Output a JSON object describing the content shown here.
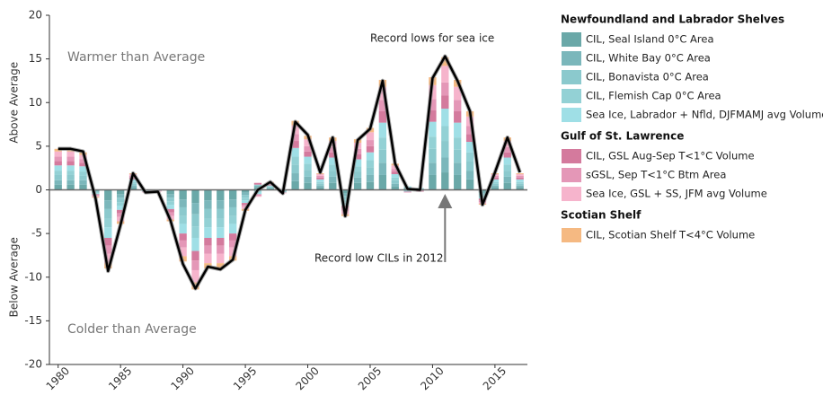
{
  "chart_data": {
    "type": "stacked-bar-line",
    "x": [
      1980,
      1981,
      1982,
      1983,
      1984,
      1985,
      1986,
      1987,
      1988,
      1989,
      1990,
      1991,
      1992,
      1993,
      1994,
      1995,
      1996,
      1997,
      1998,
      1999,
      2000,
      2001,
      2002,
      2003,
      2004,
      2005,
      2006,
      2007,
      2008,
      2009,
      2010,
      2011,
      2012,
      2013,
      2014,
      2015,
      2016,
      2017
    ],
    "xlim": [
      1979.3,
      2017.6
    ],
    "xticks": [
      1980,
      1985,
      1990,
      1995,
      2000,
      2005,
      2010,
      2015
    ],
    "ylim": [
      -20,
      20
    ],
    "yticks": [
      -20,
      -15,
      -10,
      -5,
      0,
      5,
      10,
      15,
      20
    ],
    "y_label_upper": "Above Average",
    "y_label_lower": "Below Average",
    "series": [
      {
        "name": "CIL, Seal Island 0°C Area",
        "group": "Newfoundland and Labrador Shelves",
        "color": "#6aa8a8",
        "values": [
          0.6,
          0.6,
          0.6,
          -0.1,
          -1.2,
          -0.5,
          0.3,
          0,
          0,
          -0.5,
          -1.1,
          -1.5,
          -1.2,
          -1.2,
          -1.1,
          -0.3,
          0.3,
          0.1,
          -0.1,
          1.0,
          0.8,
          0.3,
          0.8,
          -0.4,
          0.8,
          0.9,
          1.7,
          0.4,
          0.2,
          0.1,
          1.7,
          2.0,
          1.7,
          1.2,
          -0.2,
          0.3,
          0.8,
          0.3
        ]
      },
      {
        "name": "CIL, White Bay 0°C Area",
        "group": "Newfoundland and Labrador Shelves",
        "color": "#7bb7bb",
        "values": [
          0.5,
          0.5,
          0.5,
          -0.1,
          -1.0,
          -0.4,
          0.2,
          0,
          0,
          -0.4,
          -0.9,
          -1.3,
          -1.0,
          -1.0,
          -0.9,
          -0.3,
          0.2,
          0.1,
          0,
          0.9,
          0.7,
          0.2,
          0.7,
          -0.3,
          0.6,
          0.8,
          1.4,
          0.3,
          -0.1,
          0,
          1.4,
          1.7,
          1.4,
          1.0,
          -0.2,
          0.2,
          0.7,
          0.2
        ]
      },
      {
        "name": "CIL, Bonavista 0°C Area",
        "group": "Newfoundland and Labrador Shelves",
        "color": "#8bc9cd",
        "values": [
          0.6,
          0.6,
          0.5,
          -0.1,
          -1.1,
          -0.5,
          0.2,
          -0.1,
          0,
          -0.4,
          -1.0,
          -1.4,
          -1.1,
          -1.1,
          -1.0,
          -0.3,
          -0.2,
          0.1,
          -0.1,
          1.0,
          0.8,
          0.2,
          0.7,
          -0.4,
          0.7,
          0.9,
          1.5,
          0.4,
          0.1,
          -0.1,
          1.6,
          1.9,
          1.5,
          1.1,
          -0.2,
          0.2,
          0.7,
          0.2
        ]
      },
      {
        "name": "CIL, Flemish Cap 0°C Area",
        "group": "Newfoundland and Labrador Shelves",
        "color": "#93d1d5",
        "values": [
          0.5,
          0.5,
          0.5,
          -0.1,
          -1.0,
          -0.4,
          0.2,
          0,
          0,
          -0.4,
          -0.9,
          -1.3,
          -1.0,
          -1.0,
          -0.9,
          -0.3,
          0.1,
          0.1,
          0,
          0.9,
          0.7,
          0.2,
          0.7,
          -0.3,
          0.6,
          0.8,
          1.4,
          0.3,
          -0.1,
          0.1,
          1.4,
          1.7,
          1.4,
          1.0,
          -0.2,
          0.2,
          0.7,
          0.2
        ]
      },
      {
        "name": "Sea Ice, Labrador + Nfld, DJFMAMJ avg Volume",
        "group": "Newfoundland and Labrador Shelves",
        "color": "#9fdfe6",
        "values": [
          0.6,
          0.6,
          0.6,
          -0.1,
          -1.2,
          -0.5,
          0.3,
          -0.1,
          -0.1,
          -0.5,
          -1.1,
          -1.5,
          -1.2,
          -1.2,
          -1.1,
          -0.3,
          -0.3,
          0.1,
          -0.1,
          1.0,
          0.8,
          0.3,
          0.8,
          -0.4,
          0.8,
          0.9,
          1.7,
          0.4,
          0.1,
          0,
          1.7,
          2.0,
          1.7,
          1.2,
          -0.2,
          0.3,
          0.8,
          0.3
        ]
      },
      {
        "name": "CIL, GSL Aug-Sep T<1°C Volume",
        "group": "Gulf of St. Lawrence",
        "color": "#d47a9d",
        "values": [
          0.5,
          0.5,
          0.4,
          -0.1,
          -0.9,
          -0.4,
          0.2,
          0,
          0,
          -0.4,
          -0.8,
          -1.1,
          -0.9,
          -0.9,
          -0.8,
          -0.2,
          0.2,
          0.1,
          0,
          0.8,
          0.6,
          0.2,
          0.6,
          -0.3,
          0.6,
          0.7,
          1.3,
          0.3,
          0,
          -0.1,
          1.3,
          1.5,
          1.3,
          0.9,
          -0.2,
          0.2,
          0.6,
          0.2
        ]
      },
      {
        "name": "sGSL, Sep T<1°C Btm Area",
        "group": "Gulf of St. Lawrence",
        "color": "#e497b7",
        "values": [
          0.5,
          0.5,
          0.4,
          -0.1,
          -0.9,
          -0.4,
          0.2,
          0,
          0,
          -0.4,
          -0.8,
          -1.1,
          -0.9,
          -0.9,
          -0.8,
          -0.2,
          -0.2,
          0.1,
          0,
          0.8,
          0.6,
          0.2,
          0.6,
          -0.3,
          0.6,
          0.7,
          1.3,
          0.3,
          -0.1,
          0,
          1.3,
          1.5,
          1.3,
          0.9,
          -0.2,
          0.2,
          0.6,
          0.2
        ]
      },
      {
        "name": "Sea Ice, GSL + SS, JFM avg Volume",
        "group": "Gulf of St. Lawrence",
        "color": "#f6b4cc",
        "values": [
          0.6,
          0.6,
          0.5,
          -0.1,
          -1.1,
          -0.5,
          0.2,
          -0.1,
          -0.1,
          -0.4,
          -1.0,
          -1.4,
          -1.1,
          -1.1,
          -1.0,
          -0.3,
          -0.1,
          0.1,
          -0.1,
          1.0,
          0.8,
          0.2,
          0.7,
          -0.4,
          0.7,
          0.9,
          1.5,
          0.4,
          0,
          0,
          1.6,
          1.9,
          1.5,
          1.1,
          -0.2,
          0.2,
          0.7,
          0.2
        ]
      },
      {
        "name": "CIL, Scotian Shelf T<4°C Volume",
        "group": "Scotian Shelf",
        "color": "#f5b982",
        "values": [
          0.3,
          0.3,
          0.3,
          -0.1,
          -0.6,
          -0.3,
          0.1,
          0,
          0,
          -0.2,
          -0.6,
          -0.8,
          -0.6,
          -0.6,
          -0.5,
          -0.2,
          0,
          0.1,
          0,
          0.5,
          0.4,
          0.1,
          0.4,
          -0.2,
          0.4,
          0.5,
          0.8,
          0.2,
          0,
          0,
          0.9,
          1.0,
          0.8,
          0.6,
          -0.1,
          0.1,
          0.4,
          0.1
        ]
      }
    ],
    "line": {
      "color": "#000000",
      "values": [
        4.7,
        4.7,
        4.4,
        -1,
        -9.3,
        -4,
        1.9,
        -0.3,
        -0.2,
        -3.5,
        -8.5,
        -11.3,
        -8.8,
        -9.1,
        -8,
        -2.3,
        0,
        0.9,
        -0.4,
        7.8,
        6.3,
        2,
        6,
        -3,
        5.7,
        7,
        12.5,
        3,
        0.1,
        0,
        12.8,
        15.3,
        12.5,
        9,
        -1.7,
        2,
        6,
        2
      ]
    },
    "annotations": [
      "Warmer than Average",
      "Colder than Average",
      "Record lows for sea ice",
      "Record low CILs in 2012"
    ]
  }
}
